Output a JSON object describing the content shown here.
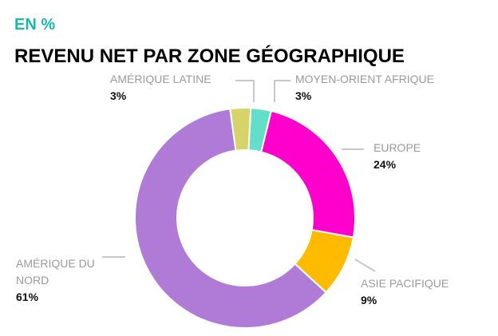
{
  "chart_data": {
    "type": "pie",
    "subtitle": "EN %",
    "title": "REVENU NET PAR ZONE GÉOGRAPHIQUE",
    "categories": [
      "MOYEN-ORIENT AFRIQUE",
      "EUROPE",
      "ASIE PACIFIQUE",
      "AMÉRIQUE DU NORD",
      "AMÉRIQUE LATINE"
    ],
    "values": [
      3,
      24,
      9,
      61,
      3
    ],
    "value_labels": [
      "3%",
      "24%",
      "9%",
      "61%",
      "3%"
    ],
    "colors": [
      "#63dfc9",
      "#ff00cc",
      "#ffbb00",
      "#b07bd6",
      "#d6d36a"
    ]
  }
}
